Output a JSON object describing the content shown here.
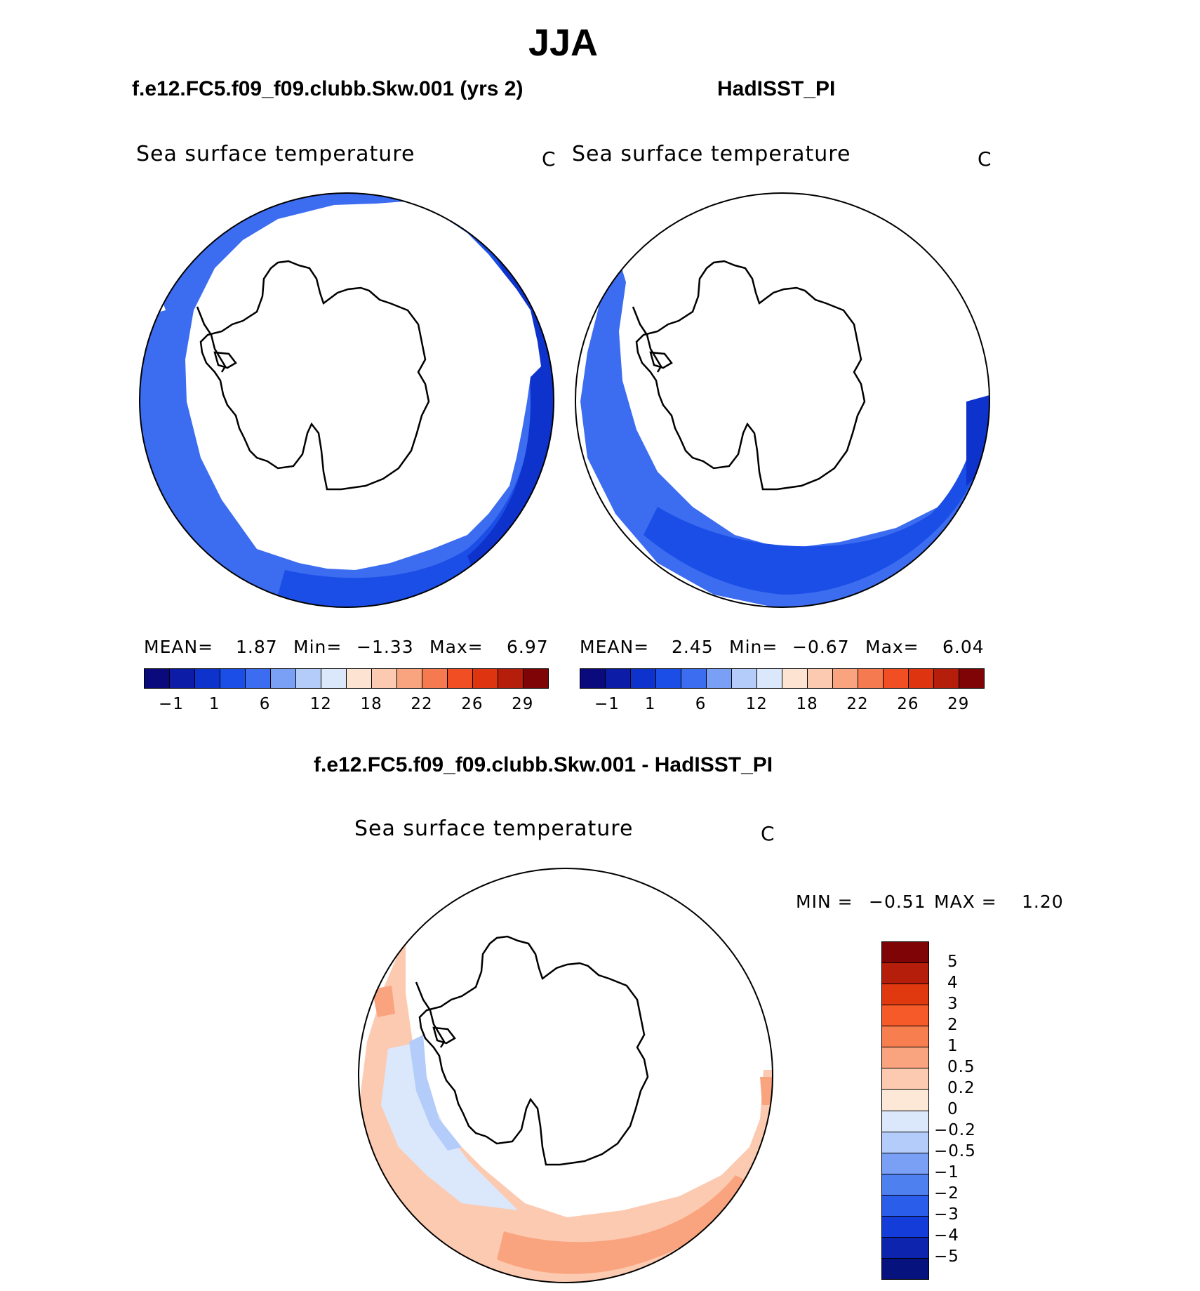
{
  "title": "JJA",
  "panel_left": {
    "case": "f.e12.FC5.f09_f09.clubb.Skw.001 (yrs 2)",
    "var": "Sea surface temperature",
    "unit": "C",
    "mean_label": "MEAN=",
    "mean": "1.87",
    "min_label": "Min=",
    "min": "−1.33",
    "max_label": "Max=",
    "max": "6.97"
  },
  "panel_right": {
    "case": "HadISST_PI",
    "var": "Sea surface temperature",
    "unit": "C",
    "mean_label": "MEAN=",
    "mean": "2.45",
    "min_label": "Min=",
    "min": "−0.67",
    "max_label": "Max=",
    "max": "6.04"
  },
  "panel_diff": {
    "case": "f.e12.FC5.f09_f09.clubb.Skw.001 - HadISST_PI",
    "var": "Sea surface temperature",
    "unit": "C",
    "min_label": "MIN =",
    "min": "−0.51",
    "max_label": "MAX =",
    "max": "1.20"
  },
  "colorbar_top": {
    "colors": [
      "#0a0a7d",
      "#0c1ca6",
      "#0e33cc",
      "#1a4ee6",
      "#3c6cf0",
      "#7aa0f5",
      "#b4ccfa",
      "#dbe8fc",
      "#fde4d2",
      "#fccab0",
      "#f9a47e",
      "#f57a50",
      "#f14f23",
      "#de3410",
      "#b41e0a",
      "#7e0406"
    ],
    "tick_labels": [
      "−1",
      "1",
      "6",
      "12",
      "18",
      "22",
      "26",
      "29"
    ]
  },
  "colorbar_diff": {
    "colors": [
      "#7e0406",
      "#b41e0a",
      "#e03910",
      "#f55a28",
      "#f77e4e",
      "#f9a47e",
      "#fccab0",
      "#fde8d8",
      "#dbe8fc",
      "#b4ccfa",
      "#7aa0f5",
      "#4f80f0",
      "#2a5eea",
      "#143cd8",
      "#0c24ae",
      "#06137f"
    ],
    "tick_labels": [
      "5",
      "4",
      "3",
      "2",
      "1",
      "0.5",
      "0.2",
      "0",
      "−0.2",
      "−0.5",
      "−1",
      "−2",
      "−3",
      "−4",
      "−5"
    ]
  }
}
